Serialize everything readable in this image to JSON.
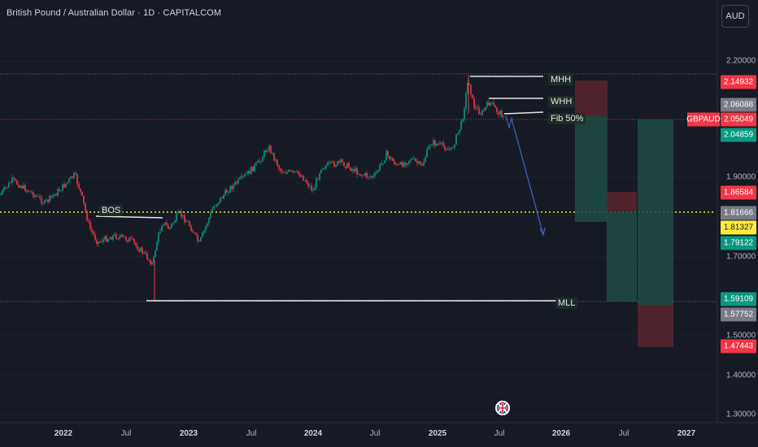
{
  "header": {
    "title": "British Pound / Australian Dollar · 1D · CAPITALCOM"
  },
  "currency_button": {
    "label": "AUD"
  },
  "symbol_tag": {
    "label": "GBPAUD"
  },
  "axis": {
    "price_ticks": [
      "2.20000",
      "1.90000",
      "1.70000",
      "1.50000",
      "1.40000",
      "1.30000"
    ],
    "date_ticks": [
      {
        "label": "2022",
        "year": true
      },
      {
        "label": "Jul",
        "year": false
      },
      {
        "label": "2023",
        "year": true
      },
      {
        "label": "Jul",
        "year": false
      },
      {
        "label": "2024",
        "year": true
      },
      {
        "label": "Jul",
        "year": false
      },
      {
        "label": "2025",
        "year": true
      },
      {
        "label": "Jul",
        "year": false
      },
      {
        "label": "2026",
        "year": true
      },
      {
        "label": "Jul",
        "year": false
      },
      {
        "label": "2027",
        "year": true
      }
    ]
  },
  "price_tags": [
    {
      "label": "2.14932",
      "bg": "#f23645",
      "fg": "#ffffff"
    },
    {
      "label": "2.06088",
      "bg": "#787b86",
      "fg": "#ffffff"
    },
    {
      "label": "2.05049",
      "bg": "#f23645",
      "fg": "#ffffff"
    },
    {
      "label": "2.04859",
      "bg": "#089981",
      "fg": "#ffffff"
    },
    {
      "label": "1.86584",
      "bg": "#f23645",
      "fg": "#ffffff"
    },
    {
      "label": "1.81666",
      "bg": "#787b86",
      "fg": "#ffffff"
    },
    {
      "label": "1.81327",
      "bg": "#ffeb3b",
      "fg": "#131722"
    },
    {
      "label": "1.79122",
      "bg": "#089981",
      "fg": "#ffffff"
    },
    {
      "label": "1.59109",
      "bg": "#089981",
      "fg": "#ffffff"
    },
    {
      "label": "1.57752",
      "bg": "#787b86",
      "fg": "#ffffff"
    },
    {
      "label": "1.47443",
      "bg": "#f23645",
      "fg": "#ffffff"
    }
  ],
  "annotations": {
    "mhh": "MHH",
    "whh": "WHH",
    "fib": "Fib 50%",
    "bos": "BOS",
    "mll": "MLL"
  },
  "colors": {
    "background": "#161a25",
    "bull_candle": "#089981",
    "bear_candle": "#f23645",
    "target_zone": "#1d4d44",
    "stop_zone": "#5a2630",
    "projection_arrow": "#3a5fb0",
    "dotted_level": "#ffeb3b"
  }
}
